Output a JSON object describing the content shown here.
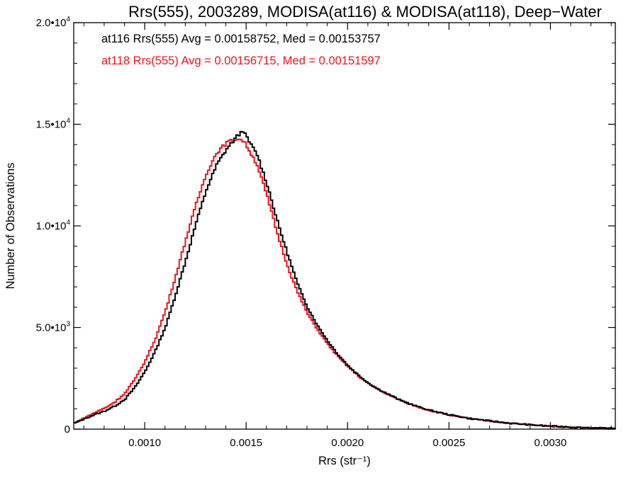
{
  "chart_data": {
    "type": "line",
    "title": "Rrs(555), 2003289, MODISA(at116) & MODISA(at118), Deep−Water",
    "xlabel": "Rrs (str⁻¹)",
    "ylabel": "Number of Observations",
    "xlim": [
      0.00065,
      0.00332
    ],
    "ylim": [
      0,
      20000
    ],
    "x_ticks": [
      {
        "value": 0.001,
        "label": "0.0010"
      },
      {
        "value": 0.0015,
        "label": "0.0015"
      },
      {
        "value": 0.002,
        "label": "0.0020"
      },
      {
        "value": 0.0025,
        "label": "0.0025"
      },
      {
        "value": 0.003,
        "label": "0.0030"
      }
    ],
    "y_ticks": [
      {
        "value": 0,
        "mantissa": "0",
        "exponent": ""
      },
      {
        "value": 5000,
        "mantissa": "5.0•10",
        "exponent": "3"
      },
      {
        "value": 10000,
        "mantissa": "1.0•10",
        "exponent": "4"
      },
      {
        "value": 15000,
        "mantissa": "1.5•10",
        "exponent": "4"
      },
      {
        "value": 20000,
        "mantissa": "2.0•10",
        "exponent": "4"
      }
    ],
    "legend_position": "top-left",
    "series": [
      {
        "name": "at116 Rrs(555) Avg = 0.00158752, Med = 0.00153757",
        "color": "#000000",
        "x": [
          0.00065,
          0.0007,
          0.00075,
          0.0008,
          0.00085,
          0.0009,
          0.00095,
          0.001,
          0.00105,
          0.0011,
          0.00115,
          0.0012,
          0.00125,
          0.0013,
          0.00135,
          0.0014,
          0.00145,
          0.00148,
          0.0015,
          0.00155,
          0.0016,
          0.00165,
          0.0017,
          0.00175,
          0.0018,
          0.00185,
          0.0019,
          0.00195,
          0.002,
          0.00205,
          0.0021,
          0.00215,
          0.0022,
          0.00225,
          0.0023,
          0.00235,
          0.0024,
          0.0025,
          0.0026,
          0.0027,
          0.0028,
          0.0029,
          0.003,
          0.0031,
          0.0032,
          0.00332
        ],
        "values": [
          300,
          520,
          720,
          900,
          1150,
          1500,
          2100,
          2900,
          3900,
          5100,
          6700,
          8400,
          10200,
          11800,
          13000,
          13800,
          14400,
          14700,
          14300,
          13500,
          12000,
          10200,
          8600,
          7100,
          5950,
          5050,
          4300,
          3650,
          3100,
          2650,
          2250,
          1950,
          1700,
          1450,
          1250,
          1080,
          930,
          700,
          520,
          400,
          290,
          210,
          150,
          100,
          60,
          30
        ]
      },
      {
        "name": "at118 Rrs(555) Avg = 0.00156715, Med = 0.00151597",
        "color": "#e8161d",
        "x": [
          0.00065,
          0.0007,
          0.00075,
          0.0008,
          0.00085,
          0.0009,
          0.00095,
          0.001,
          0.00105,
          0.0011,
          0.00115,
          0.0012,
          0.00125,
          0.0013,
          0.00135,
          0.0014,
          0.00145,
          0.00148,
          0.0015,
          0.00155,
          0.0016,
          0.00165,
          0.0017,
          0.00175,
          0.0018,
          0.00185,
          0.0019,
          0.00195,
          0.002,
          0.00205,
          0.0021,
          0.00215,
          0.0022,
          0.00225,
          0.0023,
          0.00235,
          0.0024,
          0.0025,
          0.0026,
          0.0027,
          0.0028,
          0.0029,
          0.003,
          0.0031,
          0.0032,
          0.00332
        ],
        "values": [
          300,
          560,
          820,
          1050,
          1350,
          1800,
          2500,
          3400,
          4500,
          5900,
          7600,
          9400,
          11100,
          12600,
          13600,
          14100,
          14300,
          14200,
          13900,
          13000,
          11400,
          9600,
          8000,
          6700,
          5650,
          4850,
          4150,
          3550,
          3050,
          2600,
          2230,
          1930,
          1680,
          1440,
          1240,
          1070,
          920,
          690,
          510,
          390,
          280,
          200,
          140,
          95,
          55,
          25
        ]
      }
    ]
  }
}
